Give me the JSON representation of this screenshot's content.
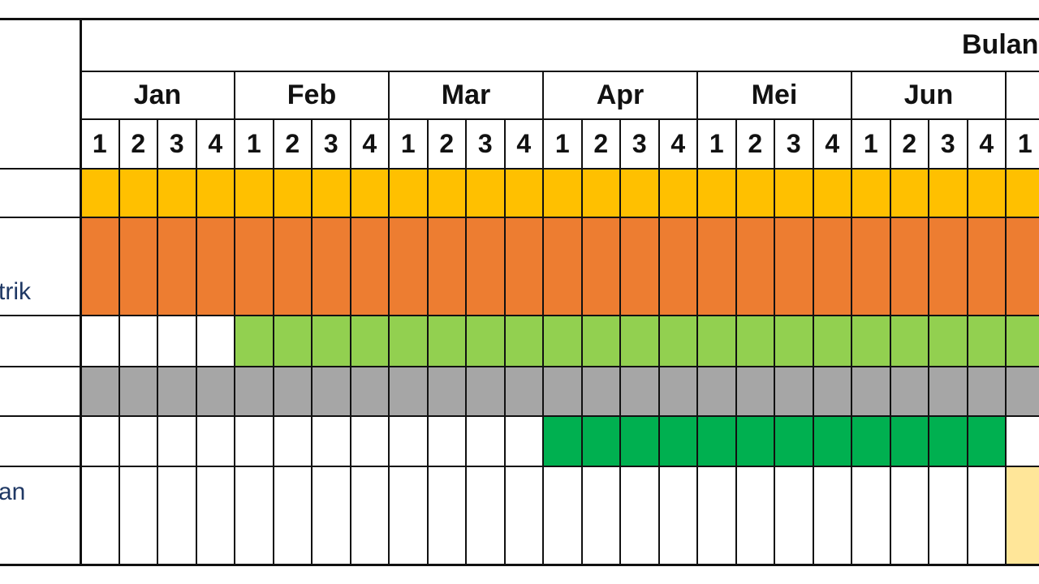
{
  "header": {
    "group_label": "Bulan"
  },
  "months": [
    "Jan",
    "Feb",
    "Mar",
    "Apr",
    "Mei",
    "Jun"
  ],
  "weeks": [
    "1",
    "2",
    "3",
    "4"
  ],
  "partial_week_label": "1",
  "row_labels": [
    {
      "text": ""
    },
    {
      "text": "trik"
    },
    {
      "text": ""
    },
    {
      "text": ""
    },
    {
      "text": ""
    },
    {
      "text": "an"
    }
  ],
  "colors": {
    "yellow": "#FFC000",
    "orange": "#ED7D31",
    "light_green": "#92D050",
    "gray": "#A6A6A6",
    "green": "#00B050",
    "pale_yellow": "#FFE699",
    "white": "#FFFFFF"
  },
  "rows": [
    {
      "name": "row-1",
      "fill": "yellow",
      "start_week": 1,
      "end_week": 25
    },
    {
      "name": "row-2",
      "fill": "orange",
      "start_week": 1,
      "end_week": 25
    },
    {
      "name": "row-3",
      "fill": "light_green",
      "start_week": 5,
      "end_week": 25
    },
    {
      "name": "row-4",
      "fill": "gray",
      "start_week": 1,
      "end_week": 25
    },
    {
      "name": "row-5",
      "fill": "green",
      "start_week": 13,
      "end_week": 24
    },
    {
      "name": "row-6",
      "fill": "pale_yellow",
      "start_week": 25,
      "end_week": 25
    }
  ]
}
